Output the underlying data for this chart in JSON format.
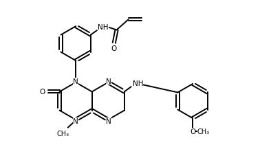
{
  "bg": "#ffffff",
  "lc": "#000000",
  "lw": 1.4,
  "fs": 7.5,
  "figsize": [
    3.94,
    2.28
  ],
  "dpi": 100,
  "xlim": [
    0,
    10
  ],
  "ylim": [
    0,
    6
  ]
}
